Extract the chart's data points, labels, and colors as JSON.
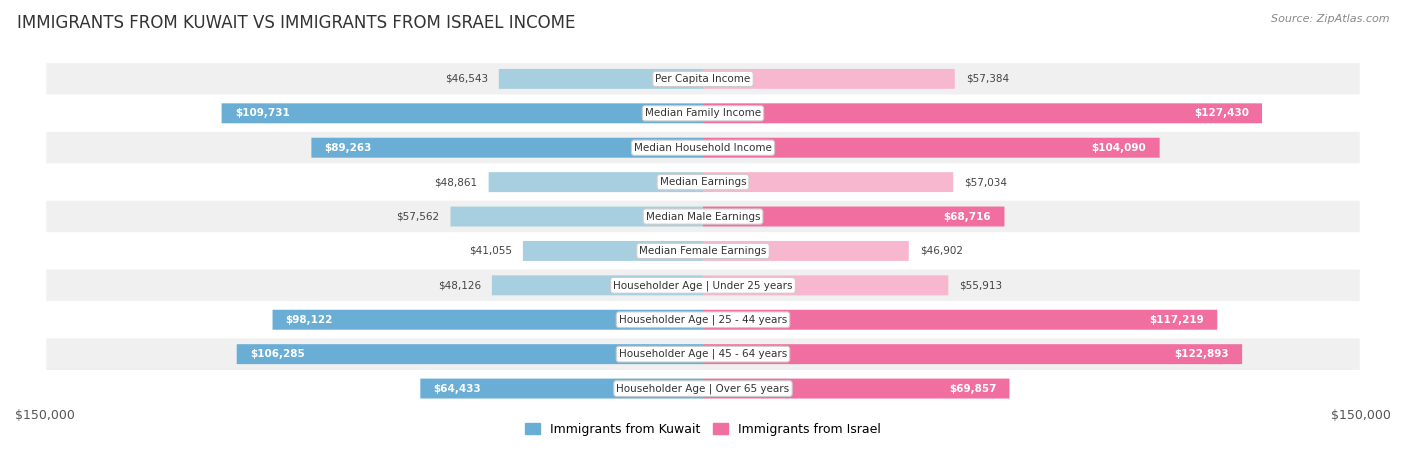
{
  "title": "IMMIGRANTS FROM KUWAIT VS IMMIGRANTS FROM ISRAEL INCOME",
  "source": "Source: ZipAtlas.com",
  "categories": [
    "Per Capita Income",
    "Median Family Income",
    "Median Household Income",
    "Median Earnings",
    "Median Male Earnings",
    "Median Female Earnings",
    "Householder Age | Under 25 years",
    "Householder Age | 25 - 44 years",
    "Householder Age | 45 - 64 years",
    "Householder Age | Over 65 years"
  ],
  "kuwait_values": [
    46543,
    109731,
    89263,
    48861,
    57562,
    41055,
    48126,
    98122,
    106285,
    64433
  ],
  "israel_values": [
    57384,
    127430,
    104090,
    57034,
    68716,
    46902,
    55913,
    117219,
    122893,
    69857
  ],
  "kuwait_color_dark": "#6aaed6",
  "kuwait_color_light": "#a8cfe0",
  "israel_color_dark": "#f06fa0",
  "israel_color_light": "#f7b8cf",
  "max_value": 150000,
  "background_color": "#ffffff",
  "row_bg_odd": "#f0f0f0",
  "row_bg_even": "#ffffff",
  "bar_height": 0.58,
  "label_threshold": 60000,
  "legend_kuwait": "Immigrants from Kuwait",
  "legend_israel": "Immigrants from Israel",
  "xlim": 150000,
  "title_fontsize": 12,
  "source_fontsize": 8,
  "label_fontsize": 7.5,
  "category_fontsize": 7.5
}
